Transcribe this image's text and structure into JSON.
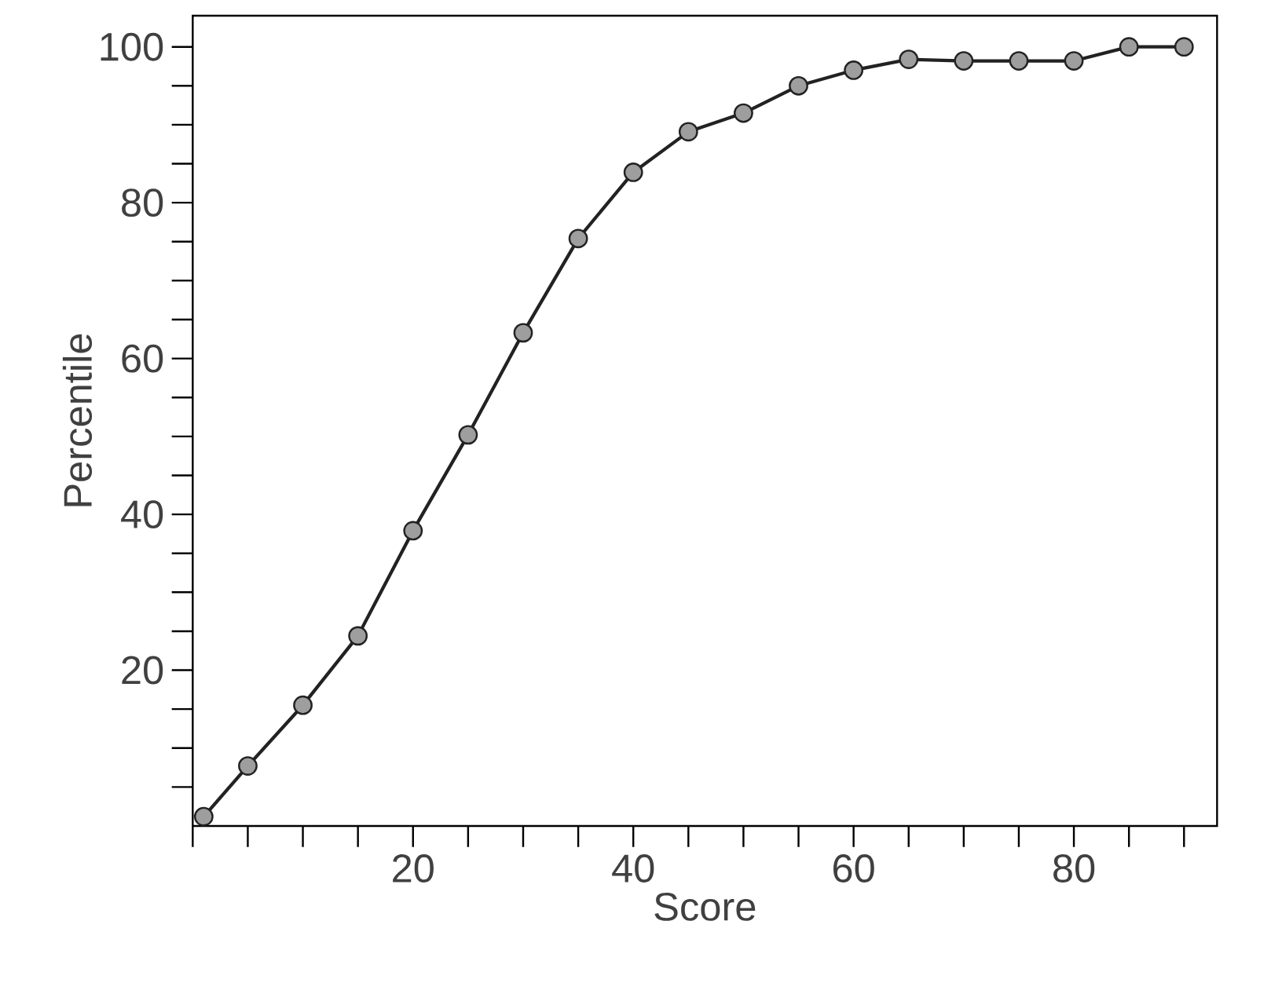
{
  "chart_data": {
    "type": "line",
    "xlabel": "Score",
    "ylabel": "Percentile",
    "x": [
      1,
      5,
      10,
      15,
      20,
      25,
      30,
      35,
      40,
      45,
      50,
      55,
      60,
      65,
      70,
      75,
      80,
      85,
      90
    ],
    "series": [
      {
        "color": "#222222",
        "values": [
          1.2,
          7.7,
          15.5,
          24.4,
          37.9,
          50.2,
          63.3,
          75.4,
          83.9,
          89.1,
          91.5,
          95.0,
          97.0,
          98.4,
          98.2,
          98.2,
          98.2,
          100,
          100
        ]
      }
    ],
    "xlim": [
      0,
      93
    ],
    "ylim": [
      0,
      104
    ],
    "xticks": [
      {
        "value": 0,
        "label": null
      },
      {
        "value": 5,
        "label": null
      },
      {
        "value": 10,
        "label": null
      },
      {
        "value": 15,
        "label": null
      },
      20,
      {
        "value": 25,
        "label": null
      },
      {
        "value": 30,
        "label": null
      },
      {
        "value": 35,
        "label": null
      },
      40,
      {
        "value": 45,
        "label": null
      },
      {
        "value": 50,
        "label": null
      },
      {
        "value": 55,
        "label": null
      },
      60,
      {
        "value": 65,
        "label": null
      },
      {
        "value": 70,
        "label": null
      },
      {
        "value": 75,
        "label": null
      },
      80,
      {
        "value": 85,
        "label": null
      },
      {
        "value": 90,
        "label": null
      }
    ],
    "yticks": [
      {
        "value": 5,
        "label": null
      },
      {
        "value": 10,
        "label": null
      },
      {
        "value": 15,
        "label": null
      },
      20,
      {
        "value": 25,
        "label": null
      },
      {
        "value": 30,
        "label": null
      },
      {
        "value": 35,
        "label": null
      },
      40,
      {
        "value": 45,
        "label": null
      },
      {
        "value": 50,
        "label": null
      },
      {
        "value": 55,
        "label": null
      },
      60,
      {
        "value": 65,
        "label": null
      },
      {
        "value": 70,
        "label": null
      },
      {
        "value": 75,
        "label": null
      },
      80,
      {
        "value": 85,
        "label": null
      },
      {
        "value": 90,
        "label": null
      },
      {
        "value": 95,
        "label": null
      },
      100
    ],
    "marker": "circle",
    "line_style": "solid"
  }
}
